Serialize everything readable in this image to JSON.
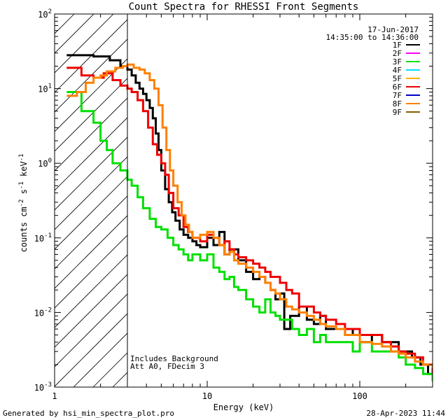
{
  "chart_data": {
    "type": "line",
    "title": "Count Spectra for RHESSI Front Segments",
    "xlabel": "Energy (keV)",
    "ylabel": "counts cm-2 s-1 keV-1",
    "ylabel_parts": [
      "counts cm",
      "-2",
      " s",
      "-1",
      " keV",
      "-1"
    ],
    "xscale": "log",
    "yscale": "log",
    "xlim": [
      1,
      300
    ],
    "ylim": [
      0.001,
      100
    ],
    "x_ticks": [
      {
        "value": 1,
        "label": "1"
      },
      {
        "value": 10,
        "label": "10"
      },
      {
        "value": 100,
        "label": "100"
      }
    ],
    "y_ticks": [
      {
        "value": 0.001,
        "base": "10",
        "exp": "-3"
      },
      {
        "value": 0.01,
        "base": "10",
        "exp": "-2"
      },
      {
        "value": 0.1,
        "base": "10",
        "exp": "-1"
      },
      {
        "value": 1,
        "base": "10",
        "exp": "0"
      },
      {
        "value": 10,
        "base": "10",
        "exp": "1"
      },
      {
        "value": 100,
        "base": "10",
        "exp": "2"
      }
    ],
    "date": "17-Jun-2017",
    "time_range": "14:35:00 to 14:36:00",
    "annotations": [
      "Includes Background",
      "Att A0, FDecim 3"
    ],
    "threshold_energy": 3,
    "footer_left": "Generated by hsi_min_spectra_plot.pro",
    "footer_right": "28-Apr-2023 11:44",
    "legend": [
      {
        "name": "1F",
        "color": "#000000"
      },
      {
        "name": "2F",
        "color": "#ff00ff"
      },
      {
        "name": "3F",
        "color": "#00e000"
      },
      {
        "name": "4F",
        "color": "#00e0ff"
      },
      {
        "name": "5F",
        "color": "#ffb000"
      },
      {
        "name": "6F",
        "color": "#ee0000"
      },
      {
        "name": "7F",
        "color": "#0000cc"
      },
      {
        "name": "8F",
        "color": "#ff8000"
      },
      {
        "name": "9F",
        "color": "#806000"
      }
    ],
    "series": [
      {
        "name": "1F",
        "color": "#000000",
        "x": [
          1.2,
          1.8,
          2.3,
          2.7,
          3.0,
          3.2,
          3.4,
          3.6,
          3.8,
          4.0,
          4.2,
          4.4,
          4.6,
          4.8,
          5.0,
          5.3,
          5.6,
          5.9,
          6.2,
          6.6,
          7.0,
          7.5,
          8.0,
          8.5,
          9.0,
          10.0,
          11.0,
          12.0,
          13.0,
          14.0,
          16.0,
          18.0,
          20.0,
          22.0,
          24.0,
          26.0,
          28.0,
          30.0,
          32.0,
          35.0,
          40.0,
          45.0,
          50.0,
          55.0,
          60.0,
          70.0,
          80.0,
          90.0,
          100.0,
          120.0,
          140.0,
          160.0,
          180.0,
          200.0,
          220.0,
          250.0,
          280.0,
          300.0
        ],
        "y": [
          28,
          27,
          24,
          20,
          18,
          15,
          12,
          10,
          8.5,
          7,
          5.5,
          4.0,
          2.5,
          1.5,
          0.8,
          0.45,
          0.3,
          0.22,
          0.17,
          0.13,
          0.11,
          0.1,
          0.09,
          0.08,
          0.075,
          0.1,
          0.08,
          0.12,
          0.06,
          0.07,
          0.05,
          0.035,
          0.028,
          0.03,
          0.025,
          0.02,
          0.015,
          0.018,
          0.006,
          0.009,
          0.012,
          0.008,
          0.007,
          0.009,
          0.006,
          0.006,
          0.005,
          0.006,
          0.004,
          0.005,
          0.004,
          0.004,
          0.003,
          0.003,
          0.0025,
          0.002,
          0.0015,
          0.0018
        ]
      },
      {
        "name": "3F",
        "color": "#00e000",
        "x": [
          1.2,
          1.5,
          1.8,
          2.0,
          2.2,
          2.4,
          2.7,
          3.0,
          3.2,
          3.5,
          3.8,
          4.2,
          4.6,
          5.0,
          5.5,
          6.0,
          6.5,
          7.0,
          7.5,
          8.0,
          9.0,
          10.0,
          11.0,
          12.0,
          13.0,
          14.0,
          15.0,
          16.0,
          18.0,
          20.0,
          22.0,
          24.0,
          26.0,
          28.0,
          30.0,
          33.0,
          36.0,
          40.0,
          45.0,
          50.0,
          55.0,
          60.0,
          70.0,
          80.0,
          90.0,
          100.0,
          120.0,
          140.0,
          160.0,
          180.0,
          200.0,
          230.0,
          260.0,
          300.0
        ],
        "y": [
          9,
          5,
          3.5,
          2,
          1.5,
          1.0,
          0.8,
          0.6,
          0.5,
          0.35,
          0.25,
          0.18,
          0.14,
          0.13,
          0.1,
          0.08,
          0.07,
          0.06,
          0.05,
          0.06,
          0.05,
          0.06,
          0.04,
          0.035,
          0.028,
          0.03,
          0.022,
          0.02,
          0.015,
          0.012,
          0.01,
          0.015,
          0.01,
          0.009,
          0.008,
          0.008,
          0.006,
          0.005,
          0.006,
          0.004,
          0.005,
          0.004,
          0.004,
          0.004,
          0.003,
          0.004,
          0.003,
          0.003,
          0.003,
          0.0025,
          0.002,
          0.0018,
          0.0015,
          0.0012
        ]
      },
      {
        "name": "6F",
        "color": "#ee0000",
        "x": [
          1.2,
          1.5,
          1.8,
          2.1,
          2.4,
          2.7,
          3.0,
          3.2,
          3.5,
          3.8,
          4.1,
          4.4,
          4.7,
          5.0,
          5.3,
          5.6,
          6.0,
          6.5,
          7.0,
          7.5,
          8.0,
          9.0,
          10.0,
          11.0,
          12.0,
          13.0,
          14.0,
          15.0,
          16.0,
          18.0,
          20.0,
          22.0,
          24.0,
          26.0,
          28.0,
          30.0,
          33.0,
          36.0,
          40.0,
          45.0,
          50.0,
          55.0,
          60.0,
          70.0,
          80.0,
          90.0,
          100.0,
          120.0,
          140.0,
          160.0,
          180.0,
          200.0,
          230.0,
          260.0,
          300.0
        ],
        "y": [
          19,
          15,
          14,
          16,
          13,
          11,
          10,
          9,
          7,
          5,
          3,
          1.8,
          1.3,
          1.0,
          0.7,
          0.4,
          0.25,
          0.2,
          0.14,
          0.12,
          0.1,
          0.09,
          0.11,
          0.1,
          0.08,
          0.09,
          0.07,
          0.06,
          0.055,
          0.05,
          0.045,
          0.04,
          0.035,
          0.03,
          0.03,
          0.025,
          0.02,
          0.018,
          0.012,
          0.012,
          0.01,
          0.009,
          0.008,
          0.007,
          0.006,
          0.006,
          0.005,
          0.005,
          0.004,
          0.0035,
          0.003,
          0.0028,
          0.0025,
          0.002,
          0.0015
        ]
      },
      {
        "name": "8F",
        "color": "#ff8000",
        "x": [
          1.2,
          1.4,
          1.6,
          1.8,
          2.0,
          2.2,
          2.5,
          2.8,
          3.0,
          3.3,
          3.6,
          3.9,
          4.2,
          4.5,
          4.8,
          5.1,
          5.4,
          5.7,
          6.0,
          6.4,
          6.8,
          7.2,
          7.6,
          8.0,
          9.0,
          10.0,
          11.0,
          12.0,
          13.0,
          14.0,
          15.0,
          16.0,
          18.0,
          20.0,
          22.0,
          24.0,
          26.0,
          28.0,
          30.0,
          33.0,
          36.0,
          40.0,
          45.0,
          50.0,
          55.0,
          60.0,
          70.0,
          80.0,
          90.0,
          100.0,
          120.0,
          140.0,
          160.0,
          180.0,
          200.0,
          230.0,
          260.0,
          300.0
        ],
        "y": [
          8,
          9,
          12,
          14,
          15,
          17,
          19,
          20,
          21,
          19,
          18,
          16,
          13,
          10,
          6,
          3,
          1.5,
          0.8,
          0.5,
          0.3,
          0.2,
          0.15,
          0.12,
          0.1,
          0.11,
          0.12,
          0.1,
          0.08,
          0.06,
          0.065,
          0.05,
          0.045,
          0.04,
          0.035,
          0.03,
          0.025,
          0.02,
          0.018,
          0.015,
          0.012,
          0.011,
          0.01,
          0.009,
          0.008,
          0.007,
          0.0065,
          0.006,
          0.005,
          0.005,
          0.004,
          0.0038,
          0.0035,
          0.003,
          0.0028,
          0.0025,
          0.0022,
          0.002,
          0.0018
        ]
      }
    ]
  }
}
